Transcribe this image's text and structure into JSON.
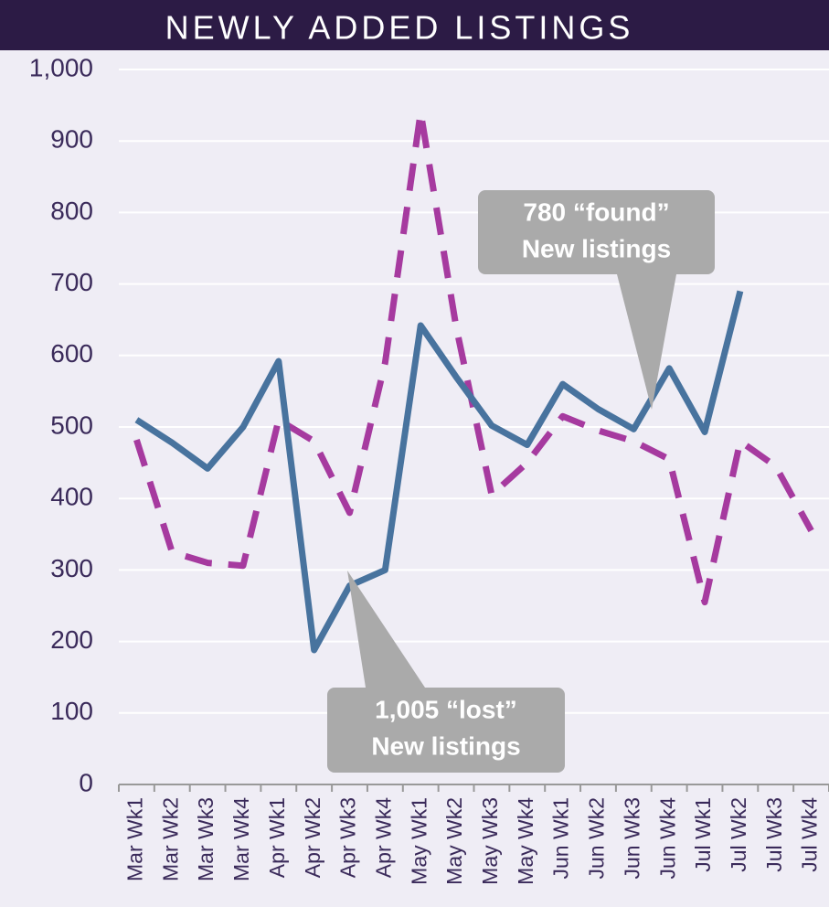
{
  "chart_data": {
    "type": "line",
    "title": "NEWLY ADDED LISTINGS",
    "categories": [
      "Mar Wk1",
      "Mar Wk2",
      "Mar Wk3",
      "Mar Wk4",
      "Apr Wk1",
      "Apr Wk2",
      "Apr Wk3",
      "Apr Wk4",
      "May Wk1",
      "May Wk2",
      "May Wk3",
      "May Wk4",
      "Jun Wk1",
      "Jun Wk2",
      "Jun Wk3",
      "Jun Wk4",
      "Jul Wk1",
      "Jul Wk2",
      "Jul Wk3",
      "Jul Wk4"
    ],
    "series": [
      {
        "color": "#48739e",
        "dashed": false,
        "values": [
          510,
          478,
          442,
          500,
          592,
          188,
          278,
          300,
          642,
          570,
          502,
          475,
          560,
          525,
          497,
          582,
          493,
          690,
          null,
          null
        ]
      },
      {
        "color": "#a63a9f",
        "dashed": true,
        "values": [
          482,
          325,
          310,
          306,
          510,
          480,
          380,
          590,
          940,
          640,
          405,
          450,
          515,
          495,
          480,
          455,
          255,
          480,
          445,
          355
        ]
      }
    ],
    "ylim": [
      0,
      1000
    ],
    "yticks": [
      0,
      100,
      200,
      300,
      400,
      500,
      600,
      700,
      800,
      900,
      {
        "value": 1000,
        "label": "1,000"
      }
    ],
    "grid": true,
    "annotations": [
      {
        "lines": [
          "780 “found”",
          "New listings"
        ]
      },
      {
        "lines": [
          "1,005 “lost”",
          "New listings"
        ]
      }
    ]
  }
}
